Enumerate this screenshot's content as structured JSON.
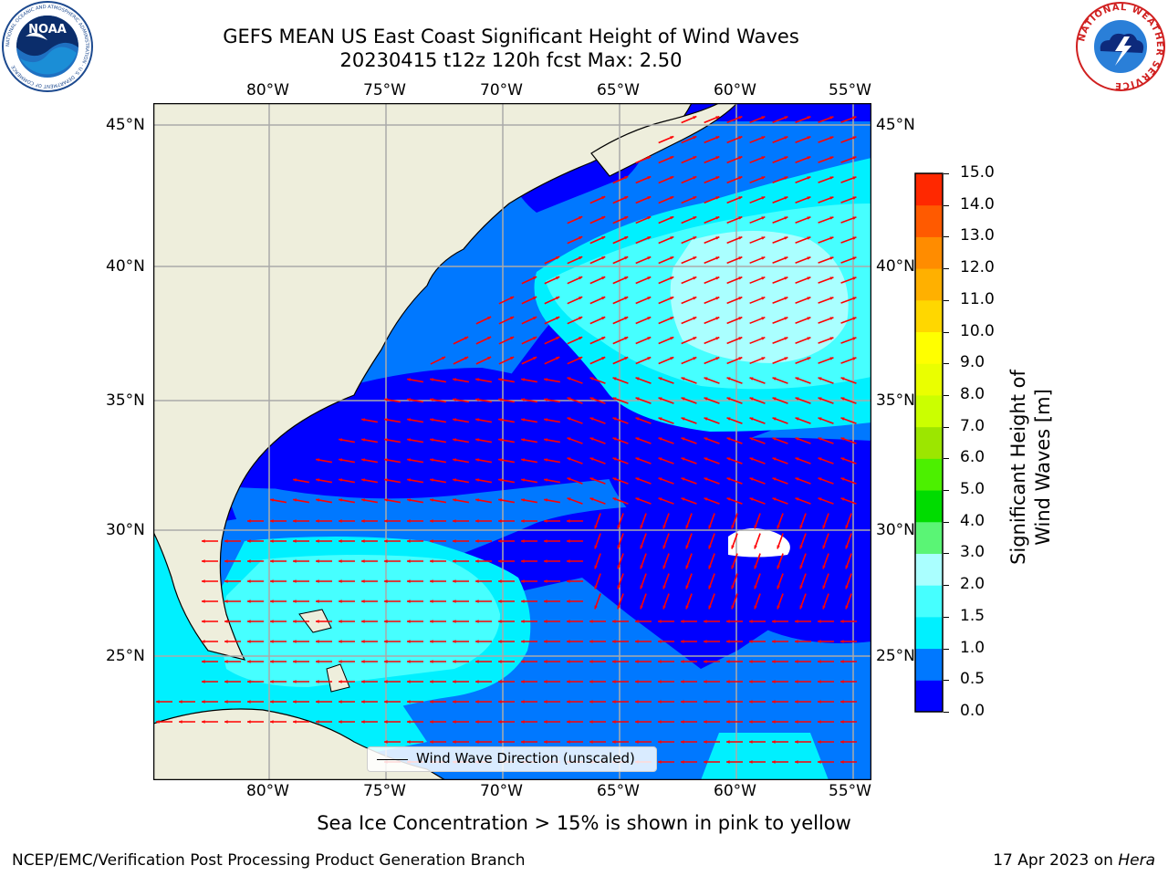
{
  "title": {
    "line1": "GEFS MEAN US East Coast Significant Height of Wind Waves",
    "line2": "20230415 t12z 120h fcst   Max: 2.50"
  },
  "logos": {
    "left": {
      "name": "noaa-logo",
      "text": "NOAA",
      "ring_text": "NATIONAL OCEANIC AND ATMOSPHERIC ADMINISTRATION · U.S. DEPARTMENT OF COMMERCE"
    },
    "right": {
      "name": "nws-logo",
      "ring_text": "NATIONAL WEATHER SERVICE"
    }
  },
  "map": {
    "lon_labels": [
      "80°W",
      "75°W",
      "70°W",
      "65°W",
      "60°W",
      "55°W"
    ],
    "lat_labels": [
      "45°N",
      "40°N",
      "35°N",
      "30°N",
      "25°N"
    ],
    "lon_range": [
      -84.9,
      -54.2
    ],
    "lat_range": [
      20.4,
      46.2
    ],
    "gridlines": true
  },
  "colorbar": {
    "label": "Significant Height of Wind Waves [m]",
    "ticks": [
      "0.0",
      "0.5",
      "1.0",
      "1.5",
      "2.0",
      "3.0",
      "4.0",
      "5.0",
      "6.0",
      "7.0",
      "8.0",
      "9.0",
      "10.0",
      "11.0",
      "12.0",
      "13.0",
      "14.0",
      "15.0"
    ],
    "colors": [
      "#0000ff",
      "#0078ff",
      "#00f0ff",
      "#46ffff",
      "#aaffff",
      "#5af575",
      "#00dc00",
      "#4cf000",
      "#9ce600",
      "#cbff00",
      "#eaff00",
      "#ffff00",
      "#ffd700",
      "#ffb000",
      "#ff8c00",
      "#ff5a00",
      "#ff2800",
      "#ff0000"
    ]
  },
  "legend": {
    "label": "Wind Wave Direction (unscaled)"
  },
  "notes": {
    "sea_ice": "Sea Ice Concentration > 15% is shown in pink to yellow"
  },
  "footer": {
    "left": "NCEP/EMC/Verification Post Processing Product Generation Branch",
    "date": "17 Apr 2023 on ",
    "host": "Hera"
  },
  "style": {
    "land": "#eeeedc",
    "arrow": "#ff0000",
    "grid": "#aaaaaa"
  }
}
